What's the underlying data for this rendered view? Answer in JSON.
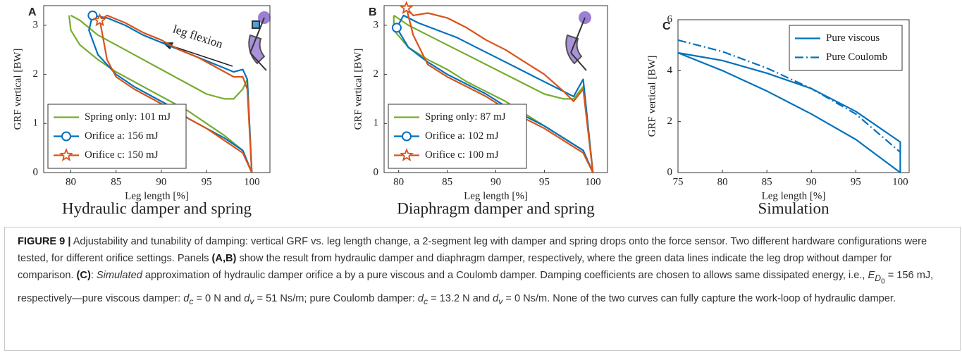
{
  "chart_data": [
    {
      "type": "line",
      "label": "A",
      "subtitle": "Hydraulic damper and spring",
      "xlabel": "Leg length [%]",
      "ylabel": "GRF vertical [BW]",
      "xlim": [
        77,
        102
      ],
      "ylim": [
        0,
        3.4
      ],
      "xticks": [
        80,
        85,
        90,
        95,
        100
      ],
      "yticks": [
        0,
        1,
        2,
        3
      ],
      "legend_loc": "lower left",
      "annotation": "leg flexion",
      "series": [
        {
          "name": "Spring only: 101 mJ",
          "color": "#77ac30",
          "linestyle": "solid",
          "x": [
            80,
            81,
            82,
            83,
            84,
            86,
            88,
            90,
            92,
            94,
            95,
            96,
            97,
            98,
            99,
            99.5,
            100,
            99,
            97,
            95,
            93,
            91,
            89,
            87,
            85,
            83,
            81,
            80,
            79.8
          ],
          "values": [
            3.2,
            3.1,
            2.95,
            2.8,
            2.7,
            2.5,
            2.3,
            2.1,
            1.9,
            1.7,
            1.6,
            1.55,
            1.5,
            1.5,
            1.7,
            1.9,
            0,
            0.45,
            0.75,
            1.0,
            1.25,
            1.45,
            1.65,
            1.85,
            2.05,
            2.3,
            2.6,
            2.9,
            3.2
          ]
        },
        {
          "name": "Orifice a: 156 mJ",
          "color": "#0072bd",
          "linestyle": "solid",
          "marker": "circle",
          "x": [
            82.4,
            84,
            86,
            88,
            90,
            92,
            94,
            96,
            98,
            99,
            99.5,
            100,
            99,
            97,
            95,
            93,
            91,
            89,
            87,
            85,
            83,
            82,
            82.4
          ],
          "values": [
            3.2,
            3.15,
            3.0,
            2.8,
            2.65,
            2.5,
            2.35,
            2.2,
            2.05,
            2.1,
            1.9,
            0,
            0.45,
            0.7,
            0.9,
            1.1,
            1.35,
            1.55,
            1.75,
            2.0,
            2.4,
            2.9,
            3.2
          ]
        },
        {
          "name": "Orifice c: 150 mJ",
          "color": "#d95319",
          "linestyle": "solid",
          "marker": "star",
          "x": [
            83.2,
            84,
            86,
            88,
            90,
            92,
            94,
            96,
            98,
            99,
            99.5,
            100,
            99,
            97,
            95,
            93,
            91,
            89,
            87,
            85,
            84,
            83.5,
            83.2
          ],
          "values": [
            3.1,
            3.2,
            3.05,
            2.85,
            2.7,
            2.5,
            2.35,
            2.15,
            1.95,
            1.95,
            1.7,
            0,
            0.4,
            0.65,
            0.9,
            1.1,
            1.3,
            1.5,
            1.7,
            1.95,
            2.3,
            2.8,
            3.1
          ]
        }
      ]
    },
    {
      "type": "line",
      "label": "B",
      "subtitle": "Diaphragm damper and spring",
      "xlabel": "Leg length [%]",
      "ylabel": "GRF vertical [BW]",
      "xlim": [
        78.5,
        101.5
      ],
      "ylim": [
        0,
        3.4
      ],
      "xticks": [
        80,
        85,
        90,
        95,
        100
      ],
      "yticks": [
        0,
        1,
        2,
        3
      ],
      "legend_loc": "lower left",
      "series": [
        {
          "name": "Spring only: 87 mJ",
          "color": "#77ac30",
          "linestyle": "solid",
          "x": [
            79.5,
            81,
            83,
            85,
            87,
            89,
            91,
            93,
            95,
            97,
            98,
            99,
            100,
            99,
            97,
            95,
            93,
            91,
            89,
            87,
            85,
            83,
            81,
            79.5,
            79.5
          ],
          "values": [
            3.2,
            3.0,
            2.8,
            2.6,
            2.4,
            2.2,
            2.0,
            1.8,
            1.6,
            1.5,
            1.5,
            1.75,
            0,
            0.45,
            0.7,
            0.95,
            1.2,
            1.45,
            1.65,
            1.85,
            2.1,
            2.3,
            2.55,
            2.9,
            3.2
          ]
        },
        {
          "name": "Orifice a: 102 mJ",
          "color": "#0072bd",
          "linestyle": "solid",
          "marker": "circle",
          "x": [
            79.8,
            80.5,
            82,
            84,
            86,
            88,
            90,
            92,
            94,
            96,
            98,
            99,
            100,
            99,
            97,
            95,
            93,
            91,
            89,
            87,
            85,
            83,
            81,
            79.8
          ],
          "values": [
            2.95,
            3.2,
            3.05,
            2.9,
            2.75,
            2.55,
            2.35,
            2.15,
            1.95,
            1.75,
            1.55,
            1.9,
            0,
            0.45,
            0.7,
            0.95,
            1.15,
            1.35,
            1.6,
            1.8,
            2.0,
            2.25,
            2.55,
            2.95
          ]
        },
        {
          "name": "Orifice c: 100 mJ",
          "color": "#d95319",
          "linestyle": "solid",
          "marker": "star",
          "x": [
            80.8,
            81.5,
            83,
            85,
            87,
            89,
            91,
            93,
            95,
            97,
            98,
            99,
            100,
            99,
            97,
            95,
            93,
            91,
            89,
            87,
            85,
            83,
            81.5,
            80.8
          ],
          "values": [
            3.35,
            3.2,
            3.25,
            3.15,
            2.95,
            2.7,
            2.5,
            2.25,
            2.0,
            1.65,
            1.45,
            1.7,
            0,
            0.4,
            0.65,
            0.9,
            1.1,
            1.3,
            1.55,
            1.75,
            1.95,
            2.2,
            2.8,
            3.35
          ]
        }
      ]
    },
    {
      "type": "line",
      "label": "C",
      "subtitle": "Simulation",
      "xlabel": "Leg length [%]",
      "ylabel": "GRF vertical [BW]",
      "xlim": [
        75,
        101
      ],
      "ylim": [
        0,
        6
      ],
      "xticks": [
        75,
        80,
        85,
        90,
        95,
        100
      ],
      "yticks": [
        0,
        2,
        4,
        6
      ],
      "legend_loc": "upper right",
      "series": [
        {
          "name": "Pure viscous",
          "color": "#0072bd",
          "linestyle": "solid",
          "x": [
            75,
            80,
            85,
            90,
            95,
            100,
            100,
            95,
            90,
            85,
            80,
            75
          ],
          "values": [
            4.7,
            4.4,
            3.9,
            3.3,
            2.4,
            1.2,
            0,
            1.3,
            2.3,
            3.2,
            4.0,
            4.7
          ]
        },
        {
          "name": "Pure Coulomb",
          "color": "#0072bd",
          "linestyle": "dashdot",
          "x": [
            75,
            80,
            85,
            90,
            95,
            100
          ],
          "values": [
            5.2,
            4.75,
            4.1,
            3.3,
            2.3,
            0.8
          ]
        }
      ]
    }
  ],
  "caption": {
    "runs": [
      "FIGURE 9 |",
      " Adjustability and tunability of damping: vertical GRF vs. leg length change, a 2-segment leg with damper and spring drops onto the force sensor. Two different hardware configurations were tested, for different orifice settings. Panels ",
      "(A,B)",
      " show the result from hydraulic damper and diaphragm damper, respectively, where the green data lines indicate the leg drop without damper for comparison. ",
      "(C)",
      ": ",
      "Simulated",
      " approximation of hydraulic damper orifice a by a pure viscous and a Coulomb damper. Damping coefficients are chosen to allows same dissipated energy, i.e., ",
      "E",
      "D",
      "0",
      " = 156 mJ, respectively—pure viscous damper: ",
      "d",
      "c",
      " = 0 N and ",
      "d",
      "v",
      " = 51 Ns/m; pure Coulomb damper: ",
      "d",
      "c",
      " = 13.2 N and ",
      "d",
      "v",
      " = 0 Ns/m. None of the two curves can fully capture the work-loop of hydraulic damper."
    ]
  }
}
